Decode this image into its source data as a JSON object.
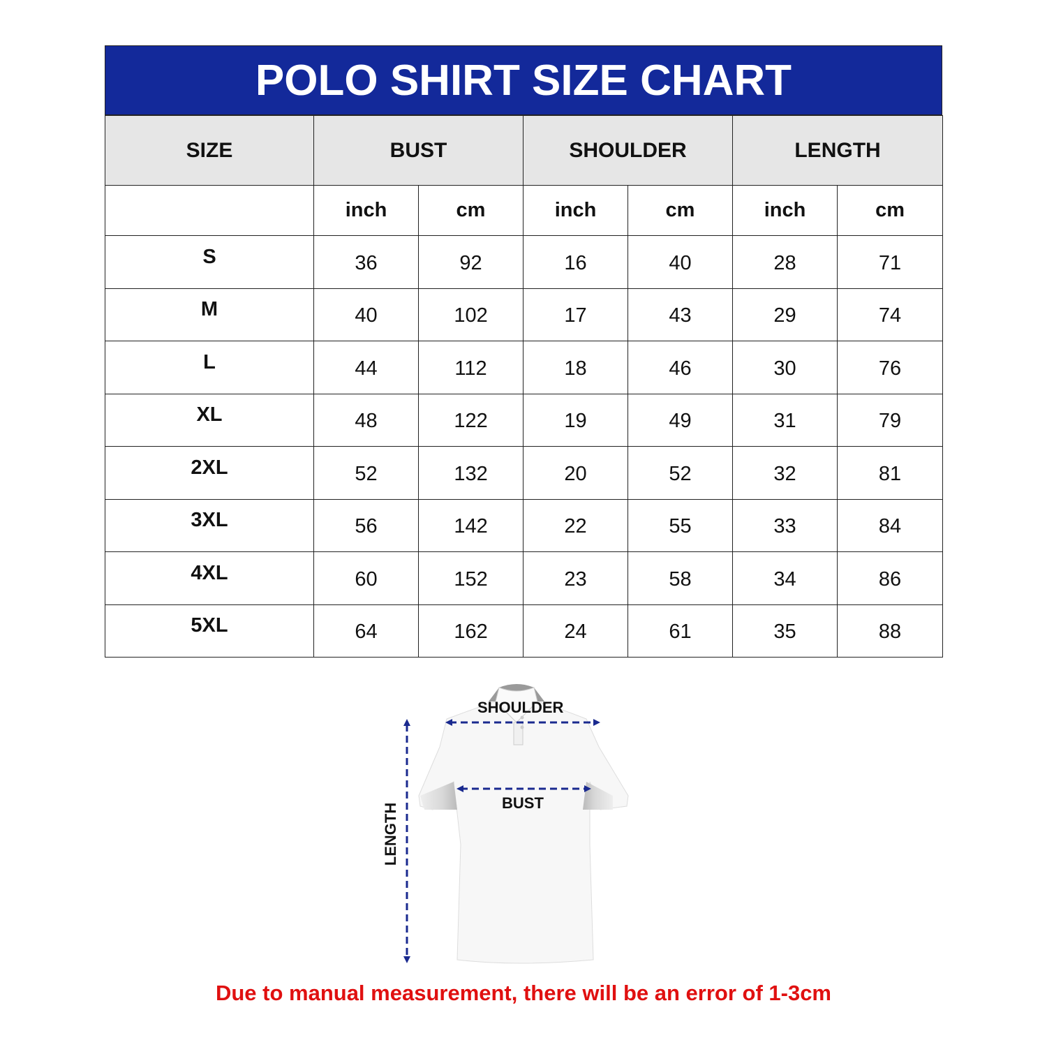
{
  "title": "POLO SHIRT SIZE CHART",
  "colors": {
    "header_bg": "#13299a",
    "header_text": "#ffffff",
    "column_header_bg": "#e6e6e6",
    "arrow": "#1a2a8f",
    "note": "#e01010"
  },
  "columns": [
    "SIZE",
    "BUST",
    "SHOULDER",
    "LENGTH"
  ],
  "units": [
    "inch",
    "cm",
    "inch",
    "cm",
    "inch",
    "cm"
  ],
  "rows": [
    {
      "size": "S",
      "values": [
        "36",
        "92",
        "16",
        "40",
        "28",
        "71"
      ]
    },
    {
      "size": "M",
      "values": [
        "40",
        "102",
        "17",
        "43",
        "29",
        "74"
      ]
    },
    {
      "size": "L",
      "values": [
        "44",
        "112",
        "18",
        "46",
        "30",
        "76"
      ]
    },
    {
      "size": "XL",
      "values": [
        "48",
        "122",
        "19",
        "49",
        "31",
        "79"
      ]
    },
    {
      "size": "2XL",
      "values": [
        "52",
        "132",
        "20",
        "52",
        "32",
        "81"
      ]
    },
    {
      "size": "3XL",
      "values": [
        "56",
        "142",
        "22",
        "55",
        "33",
        "84"
      ]
    },
    {
      "size": "4XL",
      "values": [
        "60",
        "152",
        "23",
        "58",
        "34",
        "86"
      ]
    },
    {
      "size": "5XL",
      "values": [
        "64",
        "162",
        "24",
        "61",
        "35",
        "88"
      ]
    }
  ],
  "diagram": {
    "shoulder_label": "SHOULDER",
    "bust_label": "BUST",
    "length_label": "LENGTH",
    "image": "white-polo-shirt"
  },
  "note": "Due to manual measurement, there will be an error of 1-3cm"
}
